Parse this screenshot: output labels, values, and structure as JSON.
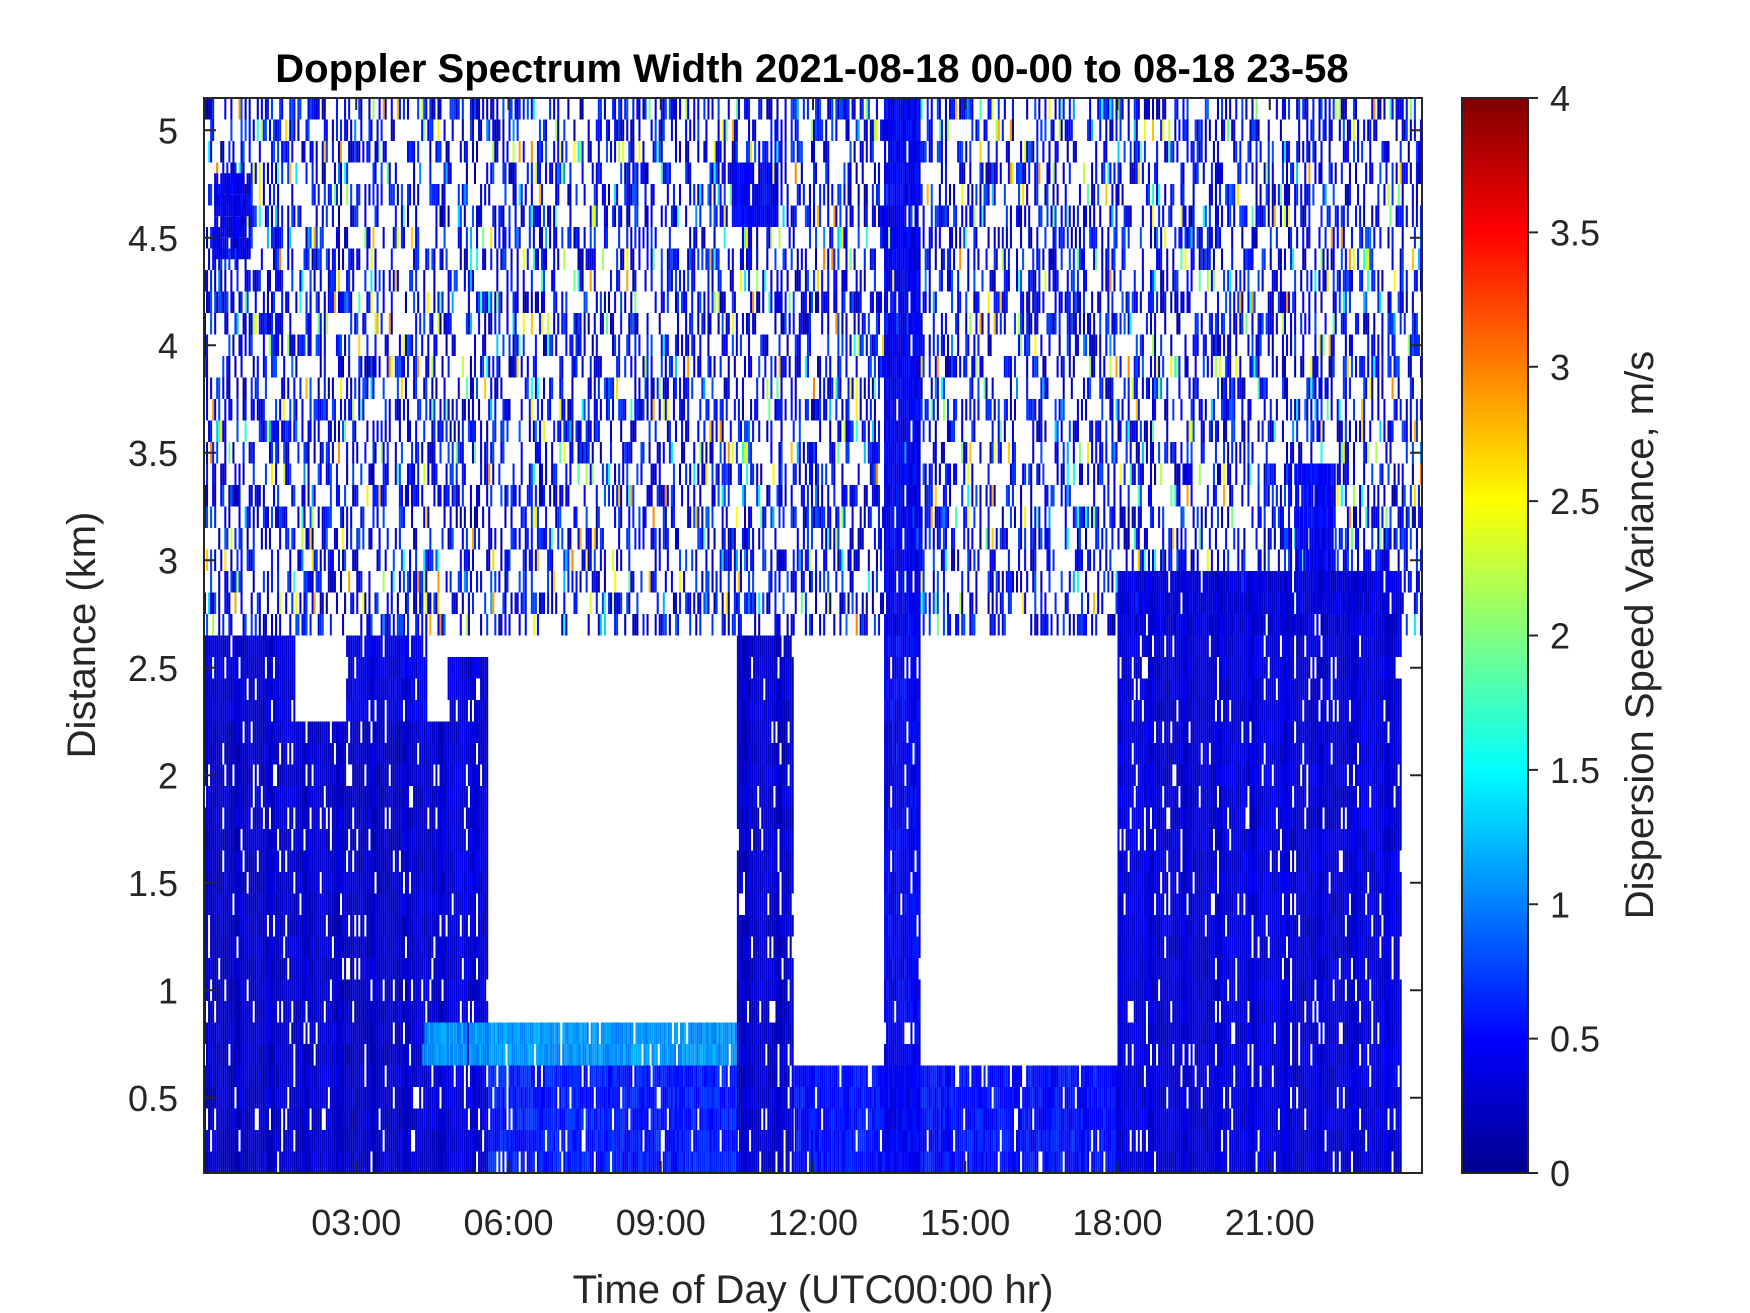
{
  "chart_data": {
    "type": "heatmap",
    "title": "Doppler Spectrum Width 2021-08-18 00-00 to 08-18 23-58",
    "xlabel": "Time of Day (UTC00:00 hr)",
    "ylabel": "Distance (km)",
    "colorbar_label": "Dispersion Speed Variance, m/s",
    "colormap": "jet",
    "x_unit": "hours UTC",
    "xlim": [
      0,
      24
    ],
    "ylim": [
      0.15,
      5.15
    ],
    "clim": [
      0,
      4
    ],
    "x_ticks": [
      {
        "value": 3,
        "label": "03:00"
      },
      {
        "value": 6,
        "label": "06:00"
      },
      {
        "value": 9,
        "label": "09:00"
      },
      {
        "value": 12,
        "label": "12:00"
      },
      {
        "value": 15,
        "label": "15:00"
      },
      {
        "value": 18,
        "label": "18:00"
      },
      {
        "value": 21,
        "label": "21:00"
      }
    ],
    "y_ticks": [
      {
        "value": 0.5,
        "label": "0.5"
      },
      {
        "value": 1,
        "label": "1"
      },
      {
        "value": 1.5,
        "label": "1.5"
      },
      {
        "value": 2,
        "label": "2"
      },
      {
        "value": 2.5,
        "label": "2.5"
      },
      {
        "value": 3,
        "label": "3"
      },
      {
        "value": 3.5,
        "label": "3.5"
      },
      {
        "value": 4,
        "label": "4"
      },
      {
        "value": 4.5,
        "label": "4.5"
      },
      {
        "value": 5,
        "label": "5"
      }
    ],
    "colorbar_ticks": [
      {
        "value": 0,
        "label": "0"
      },
      {
        "value": 0.5,
        "label": "0.5"
      },
      {
        "value": 1,
        "label": "1"
      },
      {
        "value": 1.5,
        "label": "1.5"
      },
      {
        "value": 2,
        "label": "2"
      },
      {
        "value": 2.5,
        "label": "2.5"
      },
      {
        "value": 3,
        "label": "3"
      },
      {
        "value": 3.5,
        "label": "3.5"
      },
      {
        "value": 4,
        "label": "4"
      }
    ],
    "regions": [
      {
        "x": [
          0,
          4.8
        ],
        "y": [
          0.15,
          2.25
        ],
        "value": 0.3
      },
      {
        "x": [
          0,
          1.8
        ],
        "y": [
          2.25,
          2.65
        ],
        "value": 0.35
      },
      {
        "x": [
          2.8,
          4.4
        ],
        "y": [
          2.25,
          2.65
        ],
        "value": 0.4
      },
      {
        "x": [
          4.8,
          5.6
        ],
        "y": [
          0.15,
          2.55
        ],
        "value": 0.35
      },
      {
        "x": [
          5.6,
          10.5
        ],
        "y": [
          0.15,
          0.65
        ],
        "value": 0.6
      },
      {
        "x": [
          4.3,
          10.5
        ],
        "y": [
          0.65,
          0.85
        ],
        "value": 1.1
      },
      {
        "x": [
          10.5,
          11.6
        ],
        "y": [
          0.15,
          2.65
        ],
        "value": 0.3
      },
      {
        "x": [
          11.6,
          18.0
        ],
        "y": [
          0.15,
          0.65
        ],
        "value": 0.55
      },
      {
        "x": [
          13.4,
          14.1
        ],
        "y": [
          0.15,
          5.15
        ],
        "value": 0.45
      },
      {
        "x": [
          18.0,
          23.6
        ],
        "y": [
          0.15,
          2.95
        ],
        "value": 0.35
      },
      {
        "x": [
          21.5,
          22.3
        ],
        "y": [
          2.95,
          3.45
        ],
        "value": 0.45
      },
      {
        "x": [
          0.2,
          0.9
        ],
        "y": [
          4.4,
          4.8
        ],
        "value": 0.4
      },
      {
        "x": [
          10.4,
          11.3
        ],
        "y": [
          4.55,
          4.85
        ],
        "value": 0.45
      }
    ],
    "upper_field": {
      "y": [
        2.65,
        5.15
      ],
      "coverage": 0.4,
      "typical_value": 0.45,
      "range": [
        0.1,
        3.0
      ]
    }
  }
}
